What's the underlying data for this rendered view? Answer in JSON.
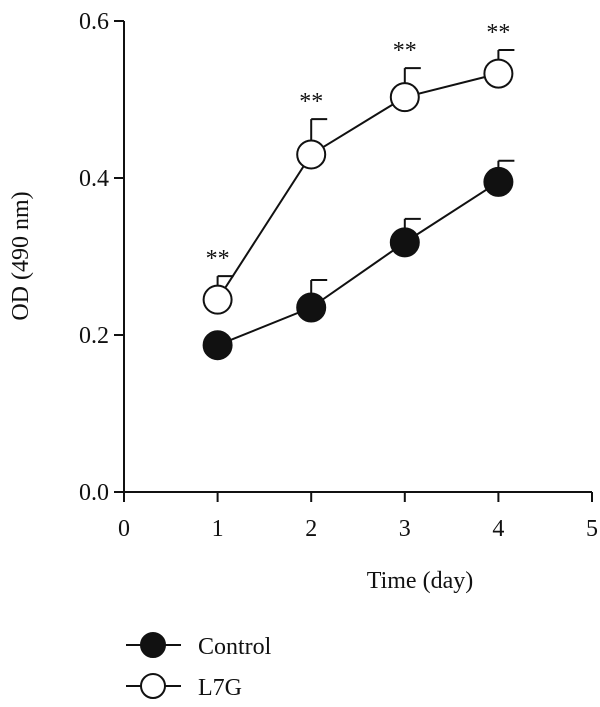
{
  "chart_data": {
    "type": "line",
    "title": "",
    "xlabel": "Time (day)",
    "ylabel": "OD (490 nm)",
    "xlim": [
      0,
      5
    ],
    "ylim": [
      0,
      0.6
    ],
    "xticks": [
      0,
      1,
      2,
      3,
      4,
      5
    ],
    "xtick_labels": [
      "0",
      "1",
      "2",
      "3",
      "4",
      "5"
    ],
    "yticks": [
      0,
      0.2,
      0.4,
      0.6
    ],
    "ytick_labels": [
      "0.0",
      "0.2",
      "0.4",
      "0.6"
    ],
    "grid": false,
    "legend_position": "bottom-left",
    "series": [
      {
        "name": "Control",
        "marker": "filled-circle",
        "color": "#111111",
        "x": [
          1,
          2,
          3,
          4
        ],
        "y": [
          0.187,
          0.235,
          0.318,
          0.395
        ],
        "error_upper": [
          0.0,
          0.035,
          0.03,
          0.027
        ],
        "annotations": []
      },
      {
        "name": "L7G",
        "marker": "open-circle",
        "color": "#111111",
        "x": [
          1,
          2,
          3,
          4
        ],
        "y": [
          0.245,
          0.43,
          0.503,
          0.533
        ],
        "error_upper": [
          0.03,
          0.045,
          0.037,
          0.03
        ],
        "annotations": [
          "**",
          "**",
          "**",
          "**"
        ]
      }
    ]
  }
}
